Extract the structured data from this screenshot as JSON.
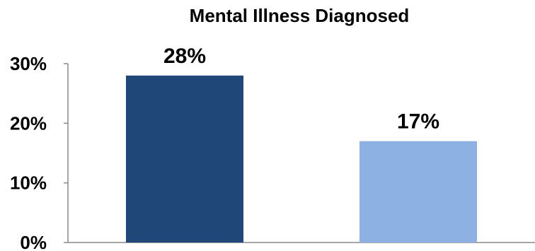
{
  "chart_data": {
    "type": "bar",
    "title": "Mental Illness Diagnosed",
    "categories": [
      "",
      ""
    ],
    "values": [
      28,
      17
    ],
    "data_labels": [
      "28%",
      "17%"
    ],
    "colors": [
      "#1f4878",
      "#8db1e2"
    ],
    "ylim": [
      0,
      30
    ],
    "yticks": [
      {
        "value": 0,
        "label": "0%"
      },
      {
        "value": 10,
        "label": "10%"
      },
      {
        "value": 20,
        "label": "20%"
      },
      {
        "value": 30,
        "label": "30%"
      }
    ],
    "xlabel": "",
    "ylabel": "",
    "grid": false,
    "legend": "none"
  }
}
